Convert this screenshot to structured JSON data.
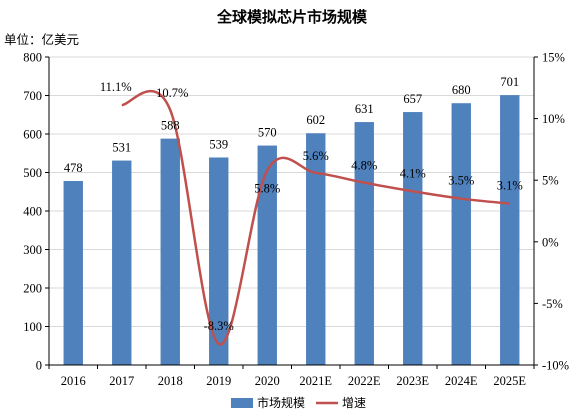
{
  "chart_data": {
    "type": "bar",
    "title": "全球模拟芯片市场规模",
    "unit_label": "单位：亿美元",
    "categories": [
      "2016",
      "2017",
      "2018",
      "2019",
      "2020",
      "2021E",
      "2022E",
      "2023E",
      "2024E",
      "2025E"
    ],
    "series": [
      {
        "name": "市场规模",
        "type": "bar",
        "axis": "left",
        "color": "#4f81bd",
        "values": [
          478,
          531,
          588,
          539,
          570,
          602,
          631,
          657,
          680,
          701
        ],
        "labels": [
          "478",
          "531",
          "588",
          "539",
          "570",
          "602",
          "631",
          "657",
          "680",
          "701"
        ]
      },
      {
        "name": "增速",
        "type": "line",
        "axis": "right",
        "color": "#c0504d",
        "smooth": true,
        "values": [
          null,
          11.1,
          10.7,
          -8.3,
          5.8,
          5.6,
          4.8,
          4.1,
          3.5,
          3.1
        ],
        "labels": [
          "",
          "11.1%",
          "10.7%",
          "-8.3%",
          "5.8%",
          "5.6%",
          "4.8%",
          "4.1%",
          "3.5%",
          "3.1%"
        ]
      }
    ],
    "y_left": {
      "min": 0,
      "max": 800,
      "ticks": [
        "0",
        "100",
        "200",
        "300",
        "400",
        "500",
        "600",
        "700",
        "800"
      ]
    },
    "y_right": {
      "min": -10,
      "max": 15,
      "ticks": [
        "-10%",
        "-5%",
        "0%",
        "5%",
        "10%",
        "15%"
      ]
    },
    "grid": true,
    "legend_position": "bottom"
  }
}
